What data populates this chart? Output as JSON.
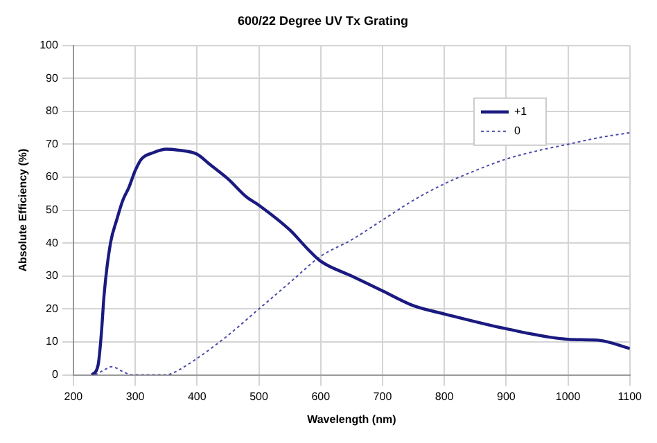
{
  "chart_data": {
    "type": "line",
    "title": "600/22 Degree UV Tx Grating",
    "xlabel": "Wavelength (nm)",
    "ylabel": "Absolute Efficiency (%)",
    "xlim": [
      200,
      1100
    ],
    "xticks": [
      200,
      300,
      400,
      500,
      600,
      700,
      800,
      900,
      1000,
      1100
    ],
    "ylim": [
      0,
      100
    ],
    "yticks": [
      0,
      10,
      20,
      30,
      40,
      50,
      60,
      70,
      80,
      90,
      100
    ],
    "grid": true,
    "legend": "top right",
    "marker": "none",
    "series": [
      {
        "name": "+1",
        "color": "#1a1a80",
        "line_style": "solid",
        "x": [
          230,
          240,
          245,
          250,
          260,
          270,
          280,
          290,
          300,
          310,
          330,
          350,
          370,
          400,
          420,
          450,
          480,
          500,
          550,
          580,
          600,
          650,
          700,
          750,
          800,
          900,
          1000,
          1050,
          1100
        ],
        "values": [
          0,
          3,
          12,
          25,
          40,
          47,
          53,
          57,
          62,
          65.5,
          67.5,
          68.5,
          68.2,
          67,
          64,
          59.5,
          54,
          51.5,
          44,
          38,
          34.5,
          30,
          25.5,
          21,
          18.5,
          14,
          10.8,
          10.5,
          8
        ]
      },
      {
        "name": "0",
        "color": "#4a4aa8",
        "line_style": "dotted",
        "x": [
          235,
          250,
          262,
          280,
          295,
          350,
          360,
          400,
          450,
          500,
          550,
          600,
          650,
          700,
          750,
          800,
          850,
          900,
          950,
          1000,
          1050,
          1100
        ],
        "values": [
          0,
          1.5,
          2.5,
          1,
          0,
          0,
          0.5,
          5,
          12,
          20,
          28,
          36,
          41,
          47,
          53,
          58,
          62,
          65.5,
          68,
          70,
          72,
          73.5
        ]
      }
    ]
  }
}
